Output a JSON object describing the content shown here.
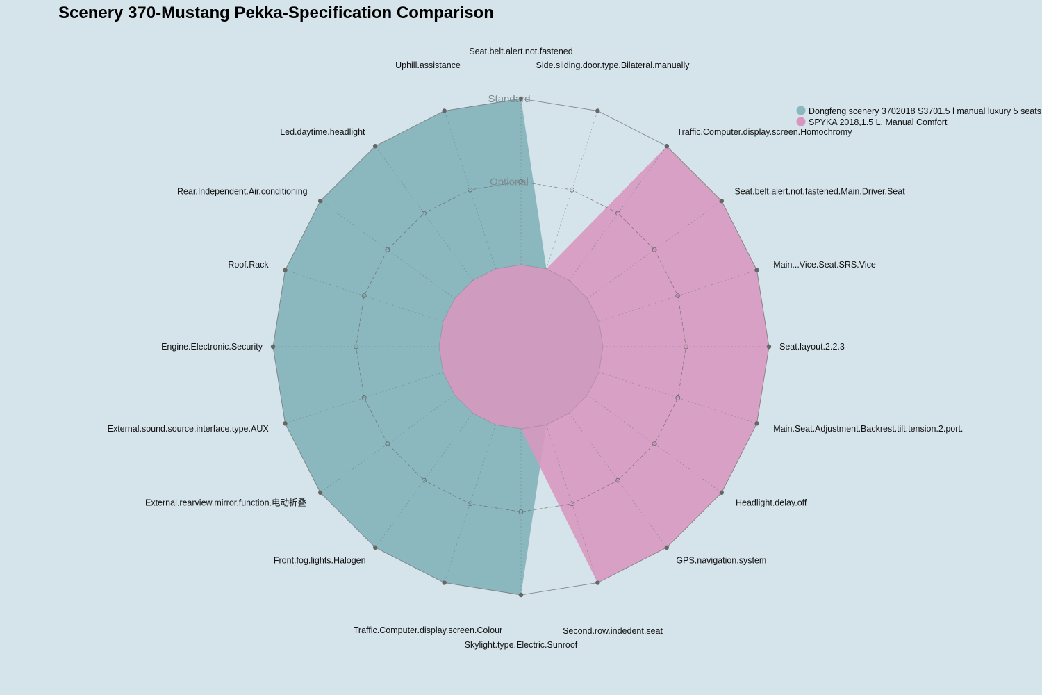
{
  "chart_data": {
    "type": "radar",
    "title": "Scenery 370-Mustang Pekka-Specification Comparison",
    "levels": [
      "",
      "Optional",
      "Standard"
    ],
    "value_range": [
      0,
      2
    ],
    "axes": [
      "Seat.belt.alert.not.fastened",
      "Side.sliding.door.type.Bilateral.manually",
      "Traffic.Computer.display.screen.Homochromy",
      "Seat.belt.alert.not.fastened.Main.Driver.Seat",
      "Main...Vice.Seat.SRS.Vice",
      "Seat.layout.2.2.3",
      "Main.Seat.Adjustment.Backrest.tilt.tension.2.port.",
      "Headlight.delay.off",
      "GPS.navigation.system",
      "Second.row.indedent.seat",
      "Skylight.type.Electric.Sunroof",
      "Traffic.Computer.display.screen.Colour",
      "Front.fog.lights.Halogen",
      "External.rearview.mirror.function.电动折叠",
      "External.sound.source.interface.type.AUX",
      "Engine.Electronic.Security",
      "Roof.Rack",
      "Rear.Independent.Air.conditioning",
      "Led.daytime.headlight",
      "Uphill.assistance"
    ],
    "series": [
      {
        "name": "Dongfeng scenery 3702018 S3701.5 l manual luxury 5 seats",
        "color": "#8ab8be",
        "values": [
          2,
          0,
          0,
          0,
          0,
          0,
          0,
          0,
          0,
          0,
          2,
          2,
          2,
          2,
          2,
          2,
          2,
          2,
          2,
          2
        ]
      },
      {
        "name": "SPYKA 2018,1.5 L, Manual Comfort",
        "color": "#d896bf",
        "values": [
          0,
          0,
          2,
          2,
          2,
          2,
          2,
          2,
          2,
          2,
          0,
          0,
          0,
          0,
          0,
          0,
          0,
          0,
          0,
          0
        ]
      }
    ],
    "legend_position": "top-right"
  }
}
